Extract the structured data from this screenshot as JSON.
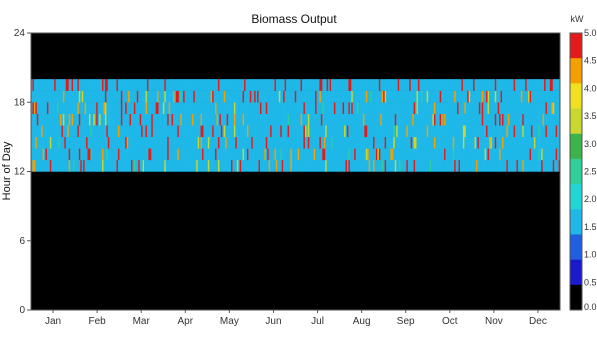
{
  "chart_data": {
    "type": "heatmap",
    "title": "Biomass Output",
    "ylabel": "Hour of Day",
    "xlabel": "",
    "x_categories": [
      "Jan",
      "Feb",
      "Mar",
      "Apr",
      "May",
      "Jun",
      "Jul",
      "Aug",
      "Sep",
      "Oct",
      "Nov",
      "Dec"
    ],
    "y_range": [
      0,
      24
    ],
    "y_ticks": [
      "0",
      "6",
      "12",
      "18",
      "24"
    ],
    "colorbar": {
      "unit": "kW",
      "range": [
        0,
        5
      ],
      "tick_labels": [
        "5.0",
        "4.5",
        "4.0",
        "3.5",
        "3.0",
        "2.5",
        "2.0",
        "1.5",
        "1.0",
        "0.5",
        "0.0"
      ],
      "colors": [
        "#000000",
        "#1a1acc",
        "#1f5fe0",
        "#1fb8e8",
        "#22d6d6",
        "#2fcf9a",
        "#3cb44b",
        "#c8d830",
        "#f0e020",
        "#f5a000",
        "#e41a1a"
      ]
    },
    "output_window": {
      "start_hour": 12,
      "end_hour": 20,
      "typical_value": 1.5,
      "value_range": [
        1.5,
        5.0
      ]
    },
    "off_value": 0.0
  }
}
